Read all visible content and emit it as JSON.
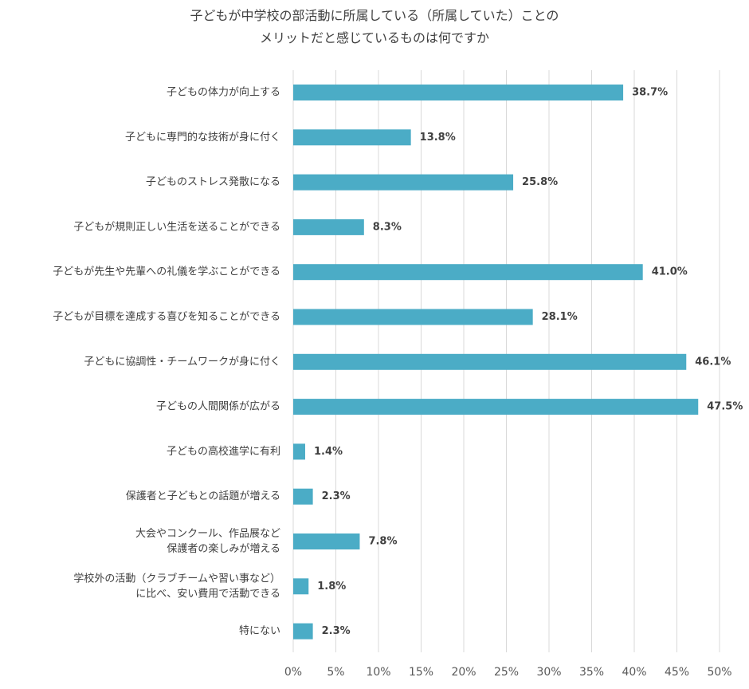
{
  "chart_data": {
    "type": "bar",
    "orientation": "horizontal",
    "title": [
      "子どもが中学校の部活動に所属している（所属していた）ことの",
      "メリットだと感じているものは何ですか"
    ],
    "categories": [
      [
        "子どもの体力が向上する"
      ],
      [
        "子どもに専門的な技術が身に付く"
      ],
      [
        "子どものストレス発散になる"
      ],
      [
        "子どもが規則正しい生活を送ることができる"
      ],
      [
        "子どもが先生や先輩への礼儀を学ぶことができる"
      ],
      [
        "子どもが目標を達成する喜びを知ることができる"
      ],
      [
        "子どもに協調性・チームワークが身に付く"
      ],
      [
        "子どもの人間関係が広がる"
      ],
      [
        "子どもの高校進学に有利"
      ],
      [
        "保護者と子どもとの話題が増える"
      ],
      [
        "大会やコンクール、作品展など",
        "保護者の楽しみが増える"
      ],
      [
        "学校外の活動（クラブチームや習い事など）",
        "に比べ、安い費用で活動できる"
      ],
      [
        "特にない"
      ]
    ],
    "values": [
      38.7,
      13.8,
      25.8,
      8.3,
      41.0,
      28.1,
      46.1,
      47.5,
      1.4,
      2.3,
      7.8,
      1.8,
      2.3
    ],
    "value_labels": [
      "38.7%",
      "13.8%",
      "25.8%",
      "8.3%",
      "41.0%",
      "28.1%",
      "46.1%",
      "47.5%",
      "1.4%",
      "2.3%",
      "7.8%",
      "1.8%",
      "2.3%"
    ],
    "xlim": [
      0,
      50
    ],
    "xticks": [
      0,
      5,
      10,
      15,
      20,
      25,
      30,
      35,
      40,
      45,
      50
    ],
    "xtick_labels": [
      "0%",
      "5%",
      "10%",
      "15%",
      "20%",
      "25%",
      "30%",
      "35%",
      "40%",
      "45%",
      "50%"
    ],
    "xlabel": "",
    "ylabel": "",
    "grid": true,
    "legend": "none",
    "bar_color": "#4BACC6"
  }
}
